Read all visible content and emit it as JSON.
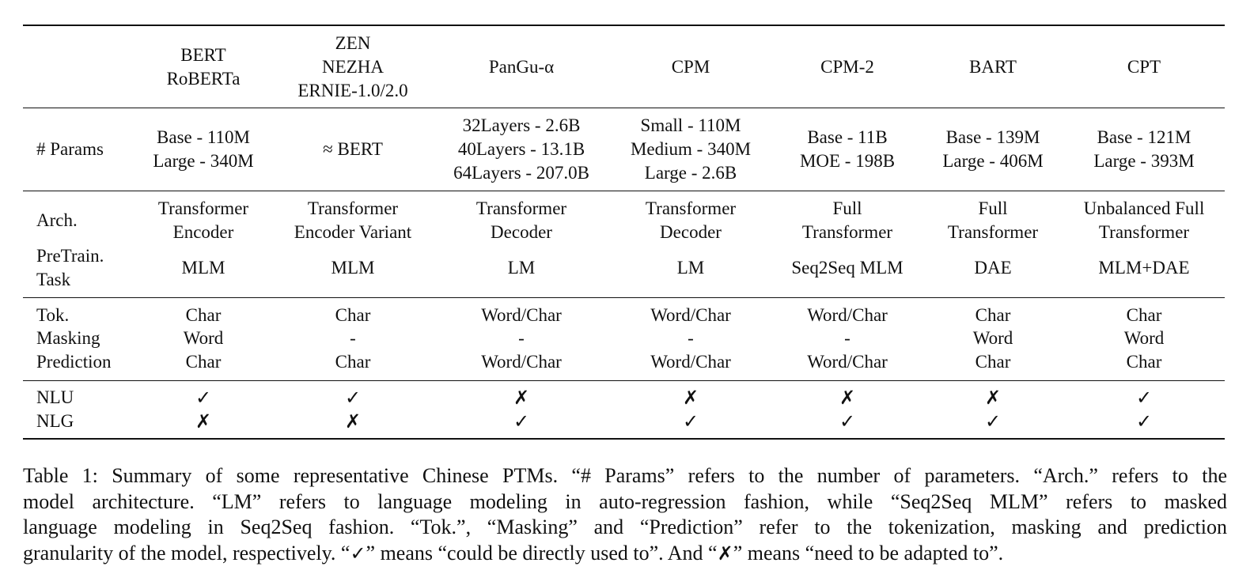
{
  "table": {
    "models": [
      {
        "id": "bert",
        "name_lines": [
          "BERT",
          "RoBERTa"
        ],
        "params": [
          "Base - 110M",
          "Large - 340M"
        ],
        "arch": [
          "Transformer",
          "Encoder"
        ],
        "pretrain": "MLM",
        "tok": "Char",
        "masking": "Word",
        "prediction": "Char",
        "nlu": "✓",
        "nlg": "✗"
      },
      {
        "id": "zen",
        "name_lines": [
          "ZEN",
          "NEZHA",
          "ERNIE-1.0/2.0"
        ],
        "params": [
          "≈ BERT"
        ],
        "arch": [
          "Transformer",
          "Encoder Variant"
        ],
        "pretrain": "MLM",
        "tok": "Char",
        "masking": "-",
        "prediction": "Char",
        "nlu": "✓",
        "nlg": "✗"
      },
      {
        "id": "pangu",
        "name_lines": [
          "PanGu-α"
        ],
        "params": [
          "32Layers - 2.6B",
          "40Layers - 13.1B",
          "64Layers - 207.0B"
        ],
        "arch": [
          "Transformer",
          "Decoder"
        ],
        "pretrain": "LM",
        "tok": "Word/Char",
        "masking": "-",
        "prediction": "Word/Char",
        "nlu": "✗",
        "nlg": "✓"
      },
      {
        "id": "cpm",
        "name_lines": [
          "CPM"
        ],
        "params": [
          "Small - 110M",
          "Medium - 340M",
          "Large - 2.6B"
        ],
        "arch": [
          "Transformer",
          "Decoder"
        ],
        "pretrain": "LM",
        "tok": "Word/Char",
        "masking": "-",
        "prediction": "Word/Char",
        "nlu": "✗",
        "nlg": "✓"
      },
      {
        "id": "cpm2",
        "name_lines": [
          "CPM-2"
        ],
        "params": [
          "Base - 11B",
          "MOE - 198B"
        ],
        "arch": [
          "Full",
          "Transformer"
        ],
        "pretrain": "Seq2Seq MLM",
        "tok": "Word/Char",
        "masking": "-",
        "prediction": "Word/Char",
        "nlu": "✗",
        "nlg": "✓"
      },
      {
        "id": "bart",
        "name_lines": [
          "BART"
        ],
        "params": [
          "Base - 139M",
          "Large - 406M"
        ],
        "arch": [
          "Full",
          "Transformer"
        ],
        "pretrain": "DAE",
        "tok": "Char",
        "masking": "Word",
        "prediction": "Char",
        "nlu": "✗",
        "nlg": "✓"
      },
      {
        "id": "cpt",
        "name_lines": [
          "CPT"
        ],
        "params": [
          "Base - 121M",
          "Large - 393M"
        ],
        "arch": [
          "Unbalanced Full",
          "Transformer"
        ],
        "pretrain": "MLM+DAE",
        "tok": "Char",
        "masking": "Word",
        "prediction": "Char",
        "nlu": "✓",
        "nlg": "✓"
      }
    ],
    "row_labels": {
      "params": "# Params",
      "arch": "Arch.",
      "pretrain": [
        "PreTrain.",
        "Task"
      ],
      "tok": "Tok.",
      "masking": "Masking",
      "prediction": "Prediction",
      "nlu": "NLU",
      "nlg": "NLG"
    }
  },
  "caption": {
    "lines": [
      "Table 1: Summary of some representative Chinese PTMs. “# Params” refers to the number of parameters. “Arch.” refers to the",
      "model architecture. “LM” refers to language modeling in auto-regression fashion, while “Seq2Seq MLM” refers to masked",
      "language modeling in Seq2Seq fashion. “Tok.”, “Masking” and “Prediction” refer to the tokenization, masking and prediction"
    ],
    "last_line": {
      "a": "granularity of the model, respectively. “",
      "check": "✓",
      "b": "” means “could be directly used to”. And “",
      "cross": "✗",
      "c": "” means “need to be adapted to”."
    }
  }
}
